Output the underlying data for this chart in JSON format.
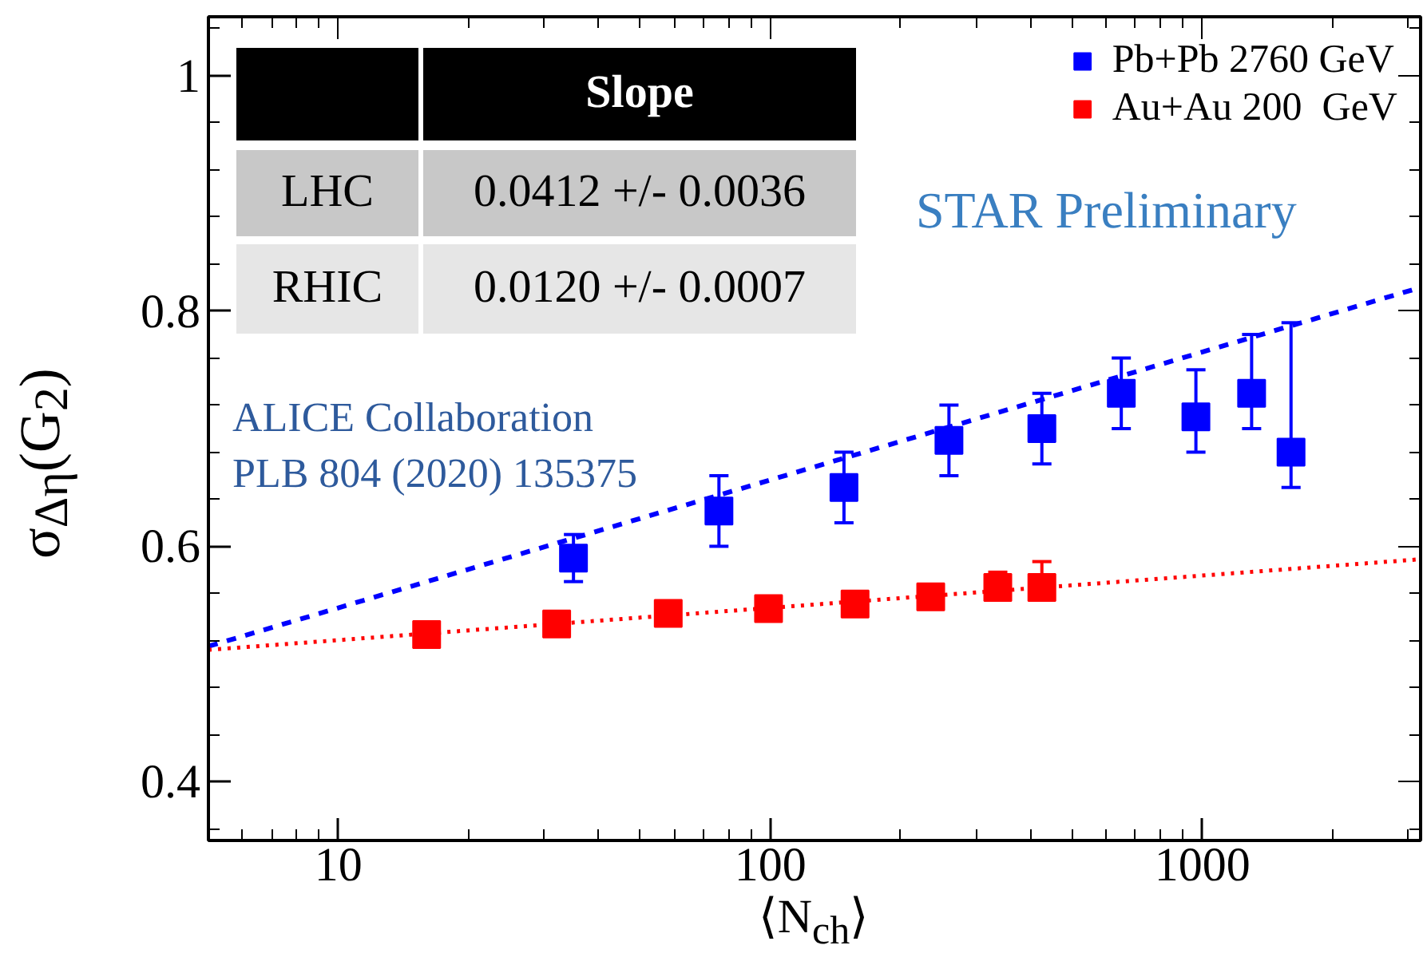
{
  "chart_data": {
    "type": "scatter",
    "xlabel": "⟨N$_{ch}$⟩",
    "ylabel": "σ$_{Δη}$(G$_{2}$)",
    "log": "x",
    "xlim": [
      5,
      3200
    ],
    "ylim": [
      0.35,
      1.05
    ],
    "xticks": [
      10,
      100,
      1000
    ],
    "yticks": [
      0.4,
      0.6,
      0.8,
      1
    ],
    "grid": false,
    "legend": "top right",
    "marker": "square",
    "annotations": [
      "Slope",
      "LHC",
      "0.0412 +/- 0.0036",
      "RHIC",
      "0.0120 +/- 0.0007",
      "STAR Preliminary",
      "ALICE Collaboration",
      "PLB 804 (2020) 135375"
    ],
    "series": [
      {
        "type": "line",
        "color": "#0000ff",
        "line_style": "dashed",
        "marker": "none",
        "x": [
          5,
          3200
        ],
        "values": [
          0.515,
          0.82
        ]
      },
      {
        "type": "line",
        "color": "#ff0000",
        "line_style": "dotted",
        "marker": "none",
        "x": [
          5,
          3200
        ],
        "values": [
          0.512,
          0.589
        ]
      },
      {
        "name": "Pb+Pb 2760 GeV",
        "color": "#0000ff",
        "x": [
          35,
          76,
          148,
          259,
          425,
          649,
          966,
          1300,
          1604
        ],
        "values": [
          0.59,
          0.63,
          0.65,
          0.69,
          0.7,
          0.73,
          0.71,
          0.73,
          0.68
        ],
        "errors": [
          [
            0.57,
            0.61
          ],
          [
            0.6,
            0.66
          ],
          [
            0.62,
            0.68
          ],
          [
            0.66,
            0.72
          ],
          [
            0.67,
            0.73
          ],
          [
            0.7,
            0.76
          ],
          [
            0.68,
            0.75
          ],
          [
            0.7,
            0.78
          ],
          [
            0.65,
            0.79
          ]
        ]
      },
      {
        "name": "Au+Au 200  GeV",
        "color": "#ff0000",
        "x": [
          16,
          32,
          58,
          99,
          157,
          235,
          336,
          425
        ],
        "values": [
          0.525,
          0.534,
          0.543,
          0.547,
          0.551,
          0.557,
          0.565,
          0.565
        ],
        "errors": [
          null,
          null,
          null,
          null,
          null,
          null,
          [
            0.565,
            0.578
          ],
          [
            0.565,
            0.587
          ]
        ]
      }
    ]
  }
}
